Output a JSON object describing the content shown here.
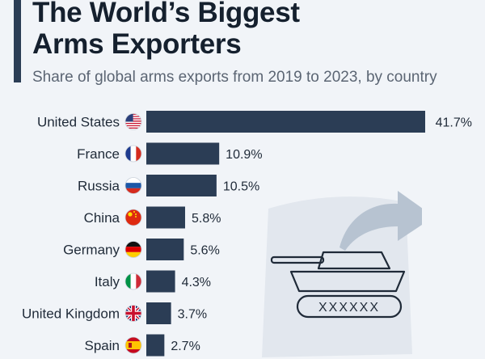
{
  "header": {
    "title_line1": "The World’s Biggest",
    "title_line2": "Arms Exporters",
    "subtitle": "Share of global arms exports from 2019 to 2023, by country"
  },
  "chart_data": {
    "type": "bar",
    "orientation": "horizontal",
    "title": "The World’s Biggest Arms Exporters",
    "subtitle": "Share of global arms exports from 2019 to 2023, by country",
    "unit": "%",
    "categories": [
      "United States",
      "France",
      "Russia",
      "China",
      "Germany",
      "Italy",
      "United Kingdom",
      "Spain"
    ],
    "values": [
      41.7,
      10.9,
      10.5,
      5.8,
      5.6,
      4.3,
      3.7,
      2.7
    ],
    "value_labels": [
      "41.7%",
      "10.9%",
      "10.5%",
      "5.8%",
      "5.6%",
      "4.3%",
      "3.7%",
      "2.7%"
    ],
    "flag_icons": [
      "us-flag-icon",
      "france-flag-icon",
      "russia-flag-icon",
      "china-flag-icon",
      "germany-flag-icon",
      "italy-flag-icon",
      "uk-flag-icon",
      "spain-flag-icon"
    ],
    "bar_color": "#2b3d55",
    "xlim": [
      0,
      41.7
    ],
    "grid": false,
    "legend": "none"
  },
  "illustration": {
    "icon": "tank-export-icon",
    "label": "XXXXXX"
  },
  "colors": {
    "background": "#f1f4f8",
    "accent": "#2b3d55",
    "title": "#15202e",
    "subtitle": "#5b6573"
  }
}
